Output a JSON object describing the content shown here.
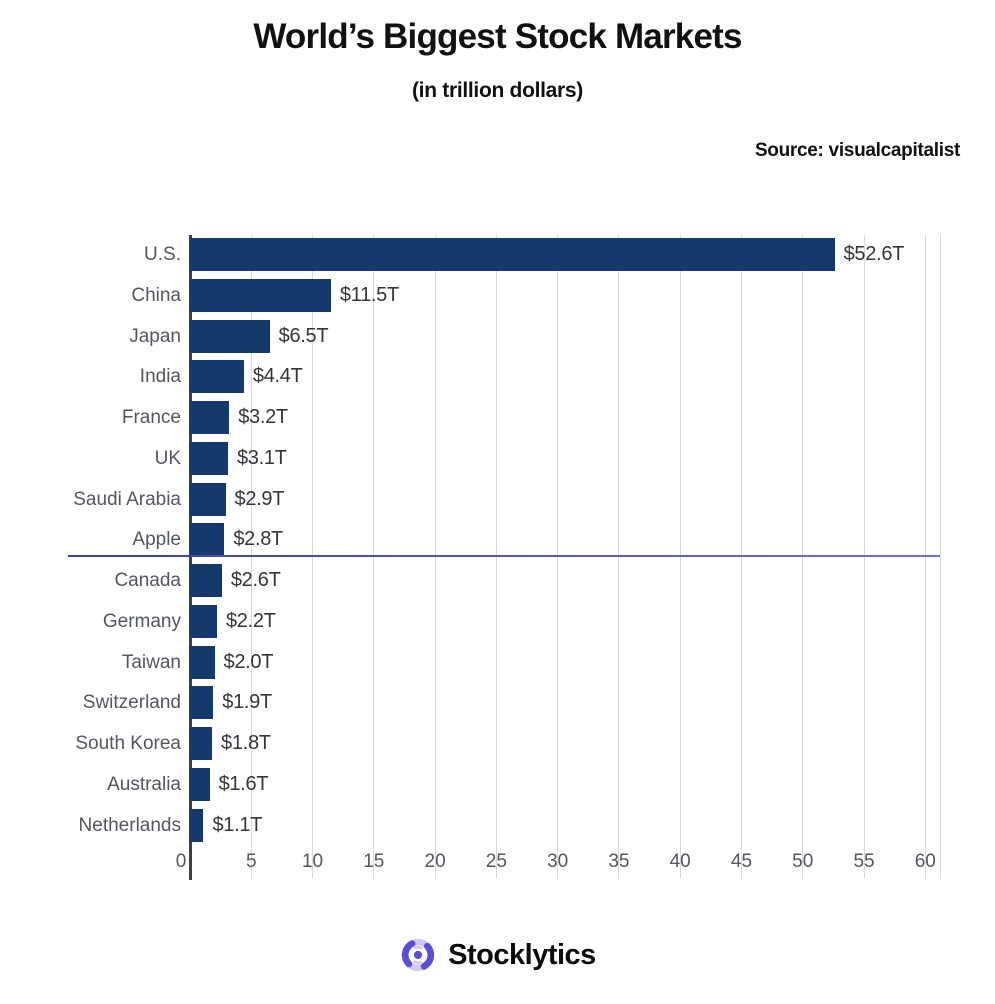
{
  "header": {
    "title": "World’s Biggest Stock Markets",
    "subtitle": "(in trillion dollars)",
    "source": "Source: visualcapitalist"
  },
  "chart_data": {
    "type": "bar",
    "orientation": "horizontal",
    "title": "World’s Biggest Stock Markets",
    "subtitle": "(in trillion dollars)",
    "xlabel": "",
    "ylabel": "",
    "categories": [
      "U.S.",
      "China",
      "Japan",
      "India",
      "France",
      "UK",
      "Saudi Arabia",
      "Apple",
      "Canada",
      "Germany",
      "Taiwan",
      "Switzerland",
      "South Korea",
      "Australia",
      "Netherlands"
    ],
    "values": [
      52.6,
      11.5,
      6.5,
      4.4,
      3.2,
      3.1,
      2.9,
      2.8,
      2.6,
      2.2,
      2.0,
      1.9,
      1.8,
      1.6,
      1.1
    ],
    "value_labels": [
      "$52.6T",
      "$11.5T",
      "$6.5T",
      "$4.4T",
      "$3.2T",
      "$3.1T",
      "$2.9T",
      "$2.8T",
      "$2.6T",
      "$2.2T",
      "$2.0T",
      "$1.9T",
      "$1.8T",
      "$1.6T",
      "$1.1T"
    ],
    "x_ticks": [
      0,
      5,
      10,
      15,
      20,
      25,
      30,
      35,
      40,
      45,
      50,
      55,
      60
    ],
    "xlim": [
      0,
      61.2
    ],
    "grid": true,
    "legend": "none"
  },
  "annotation": {
    "type": "horizontal-line",
    "near_category": "Apple",
    "color": "#4a55b5"
  },
  "footer": {
    "brand": "Stocklytics",
    "logo_icon": "swirl-shutter-icon"
  },
  "colors": {
    "bar": "#15386d",
    "axis": "#3d4045",
    "gridline": "#d9d9d9",
    "category_label": "#53575e",
    "value_label": "#33363b",
    "title_text": "#111111",
    "annotation_line": "#4a55b5",
    "brand_icon_dark": "#5a4fd4",
    "brand_icon_light": "#cfc9f4"
  }
}
